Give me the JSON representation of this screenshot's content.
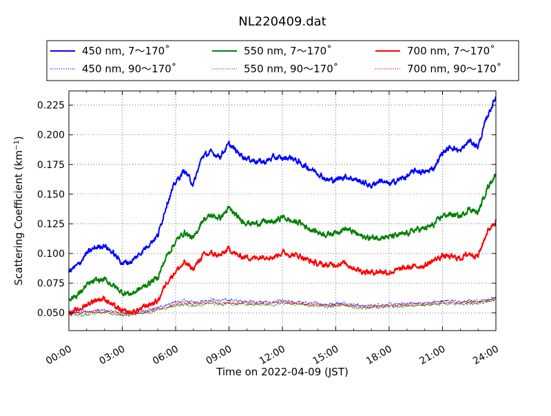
{
  "chart_data": {
    "type": "line",
    "title": "NL220409.dat",
    "xlabel": "Time on 2022-04-09 (JST)",
    "ylabel_main": "Scattering Coefficient (km",
    "ylabel_sup": "−1",
    "ylabel_close": ")",
    "xlim": [
      0,
      24
    ],
    "ylim": [
      0.035,
      0.237
    ],
    "x_ticks": [
      0,
      3,
      6,
      9,
      12,
      15,
      18,
      21,
      24
    ],
    "x_tick_labels": [
      "00:00",
      "03:00",
      "06:00",
      "09:00",
      "12:00",
      "15:00",
      "18:00",
      "21:00",
      "24:00"
    ],
    "y_ticks": [
      0.05,
      0.075,
      0.1,
      0.125,
      0.15,
      0.175,
      0.2,
      0.225
    ],
    "y_tick_labels": [
      "0.050",
      "0.075",
      "0.100",
      "0.125",
      "0.150",
      "0.175",
      "0.200",
      "0.225"
    ],
    "grid": true,
    "legend_position": "top, above plot, 3 columns",
    "series": [
      {
        "name": "450 nm, 7～170˚",
        "color": "#0000ff",
        "style": "solid",
        "x": [
          0,
          0.5,
          1,
          1.5,
          2,
          2.5,
          3,
          3.5,
          4,
          4.5,
          5,
          5.5,
          6,
          6.5,
          7,
          7.5,
          8,
          8.5,
          9,
          9.5,
          10,
          10.5,
          11,
          11.5,
          12,
          12.5,
          13,
          13.5,
          14,
          14.5,
          15,
          15.5,
          16,
          16.5,
          17,
          17.5,
          18,
          18.5,
          19,
          19.5,
          20,
          20.5,
          21,
          21.5,
          22,
          22.5,
          23,
          23.5,
          24
        ],
        "y": [
          0.085,
          0.09,
          0.1,
          0.105,
          0.107,
          0.1,
          0.092,
          0.093,
          0.1,
          0.108,
          0.115,
          0.142,
          0.16,
          0.17,
          0.158,
          0.182,
          0.185,
          0.182,
          0.192,
          0.185,
          0.18,
          0.178,
          0.177,
          0.181,
          0.18,
          0.181,
          0.176,
          0.172,
          0.168,
          0.162,
          0.162,
          0.165,
          0.163,
          0.16,
          0.157,
          0.162,
          0.158,
          0.162,
          0.165,
          0.17,
          0.168,
          0.172,
          0.185,
          0.19,
          0.186,
          0.195,
          0.19,
          0.215,
          0.232
        ]
      },
      {
        "name": "550 nm, 7～170˚",
        "color": "#008000",
        "style": "solid",
        "x": [
          0,
          0.5,
          1,
          1.5,
          2,
          2.5,
          3,
          3.5,
          4,
          4.5,
          5,
          5.5,
          6,
          6.5,
          7,
          7.5,
          8,
          8.5,
          9,
          9.5,
          10,
          10.5,
          11,
          11.5,
          12,
          12.5,
          13,
          13.5,
          14,
          14.5,
          15,
          15.5,
          16,
          16.5,
          17,
          17.5,
          18,
          18.5,
          19,
          19.5,
          20,
          20.5,
          21,
          21.5,
          22,
          22.5,
          23,
          23.5,
          24
        ],
        "y": [
          0.062,
          0.065,
          0.073,
          0.077,
          0.078,
          0.073,
          0.067,
          0.066,
          0.07,
          0.075,
          0.08,
          0.098,
          0.11,
          0.118,
          0.112,
          0.128,
          0.132,
          0.13,
          0.138,
          0.13,
          0.126,
          0.125,
          0.127,
          0.126,
          0.131,
          0.127,
          0.126,
          0.121,
          0.118,
          0.116,
          0.118,
          0.121,
          0.118,
          0.114,
          0.113,
          0.114,
          0.114,
          0.115,
          0.117,
          0.12,
          0.121,
          0.124,
          0.132,
          0.133,
          0.131,
          0.138,
          0.134,
          0.155,
          0.167
        ]
      },
      {
        "name": "700 nm, 7～170˚",
        "color": "#ff0000",
        "style": "solid",
        "x": [
          0,
          0.5,
          1,
          1.5,
          2,
          2.5,
          3,
          3.5,
          4,
          4.5,
          5,
          5.5,
          6,
          6.5,
          7,
          7.5,
          8,
          8.5,
          9,
          9.5,
          10,
          10.5,
          11,
          11.5,
          12,
          12.5,
          13,
          13.5,
          14,
          14.5,
          15,
          15.5,
          16,
          16.5,
          17,
          17.5,
          18,
          18.5,
          19,
          19.5,
          20,
          20.5,
          21,
          21.5,
          22,
          22.5,
          23,
          23.5,
          24
        ],
        "y": [
          0.05,
          0.052,
          0.057,
          0.061,
          0.062,
          0.056,
          0.051,
          0.05,
          0.053,
          0.057,
          0.06,
          0.076,
          0.085,
          0.092,
          0.087,
          0.098,
          0.1,
          0.098,
          0.104,
          0.098,
          0.097,
          0.096,
          0.098,
          0.097,
          0.101,
          0.099,
          0.098,
          0.094,
          0.091,
          0.09,
          0.091,
          0.092,
          0.088,
          0.085,
          0.084,
          0.085,
          0.084,
          0.086,
          0.088,
          0.089,
          0.09,
          0.094,
          0.098,
          0.097,
          0.096,
          0.1,
          0.098,
          0.118,
          0.128
        ]
      },
      {
        "name": "450 nm, 90～170˚",
        "color": "#0000ff",
        "style": "dotted",
        "x": [
          0,
          0.5,
          1,
          1.5,
          2,
          2.5,
          3,
          3.5,
          4,
          4.5,
          5,
          5.5,
          6,
          6.5,
          7,
          7.5,
          8,
          8.5,
          9,
          9.5,
          10,
          10.5,
          11,
          11.5,
          12,
          12.5,
          13,
          13.5,
          14,
          14.5,
          15,
          15.5,
          16,
          16.5,
          17,
          17.5,
          18,
          18.5,
          19,
          19.5,
          20,
          20.5,
          21,
          21.5,
          22,
          22.5,
          23,
          23.5,
          24
        ],
        "y": [
          0.051,
          0.05,
          0.051,
          0.052,
          0.052,
          0.051,
          0.05,
          0.05,
          0.051,
          0.052,
          0.054,
          0.057,
          0.059,
          0.06,
          0.059,
          0.06,
          0.061,
          0.06,
          0.061,
          0.06,
          0.06,
          0.059,
          0.059,
          0.059,
          0.06,
          0.059,
          0.059,
          0.058,
          0.058,
          0.057,
          0.058,
          0.058,
          0.057,
          0.056,
          0.056,
          0.057,
          0.057,
          0.057,
          0.058,
          0.058,
          0.058,
          0.059,
          0.06,
          0.06,
          0.059,
          0.06,
          0.06,
          0.061,
          0.063
        ]
      },
      {
        "name": "550 nm, 90～170˚",
        "color": "#008000",
        "style": "dotted",
        "x": [
          0,
          0.5,
          1,
          1.5,
          2,
          2.5,
          3,
          3.5,
          4,
          4.5,
          5,
          5.5,
          6,
          6.5,
          7,
          7.5,
          8,
          8.5,
          9,
          9.5,
          10,
          10.5,
          11,
          11.5,
          12,
          12.5,
          13,
          13.5,
          14,
          14.5,
          15,
          15.5,
          16,
          16.5,
          17,
          17.5,
          18,
          18.5,
          19,
          19.5,
          20,
          20.5,
          21,
          21.5,
          22,
          22.5,
          23,
          23.5,
          24
        ],
        "y": [
          0.049,
          0.048,
          0.049,
          0.05,
          0.05,
          0.049,
          0.048,
          0.048,
          0.049,
          0.05,
          0.052,
          0.054,
          0.056,
          0.057,
          0.056,
          0.057,
          0.058,
          0.057,
          0.058,
          0.057,
          0.057,
          0.057,
          0.057,
          0.057,
          0.058,
          0.057,
          0.057,
          0.056,
          0.056,
          0.055,
          0.056,
          0.056,
          0.055,
          0.054,
          0.054,
          0.055,
          0.055,
          0.055,
          0.056,
          0.056,
          0.056,
          0.057,
          0.058,
          0.058,
          0.057,
          0.058,
          0.058,
          0.059,
          0.061
        ]
      },
      {
        "name": "700 nm, 90～170˚",
        "color": "#ff0000",
        "style": "dotted",
        "x": [
          0,
          0.5,
          1,
          1.5,
          2,
          2.5,
          3,
          3.5,
          4,
          4.5,
          5,
          5.5,
          6,
          6.5,
          7,
          7.5,
          8,
          8.5,
          9,
          9.5,
          10,
          10.5,
          11,
          11.5,
          12,
          12.5,
          13,
          13.5,
          14,
          14.5,
          15,
          15.5,
          16,
          16.5,
          17,
          17.5,
          18,
          18.5,
          19,
          19.5,
          20,
          20.5,
          21,
          21.5,
          22,
          22.5,
          23,
          23.5,
          24
        ],
        "y": [
          0.05,
          0.049,
          0.05,
          0.051,
          0.051,
          0.05,
          0.049,
          0.049,
          0.05,
          0.051,
          0.053,
          0.055,
          0.057,
          0.058,
          0.057,
          0.058,
          0.059,
          0.058,
          0.059,
          0.058,
          0.058,
          0.058,
          0.058,
          0.058,
          0.059,
          0.058,
          0.058,
          0.057,
          0.057,
          0.056,
          0.057,
          0.057,
          0.056,
          0.055,
          0.055,
          0.056,
          0.056,
          0.056,
          0.057,
          0.057,
          0.057,
          0.058,
          0.059,
          0.059,
          0.058,
          0.059,
          0.059,
          0.06,
          0.062
        ]
      }
    ]
  }
}
